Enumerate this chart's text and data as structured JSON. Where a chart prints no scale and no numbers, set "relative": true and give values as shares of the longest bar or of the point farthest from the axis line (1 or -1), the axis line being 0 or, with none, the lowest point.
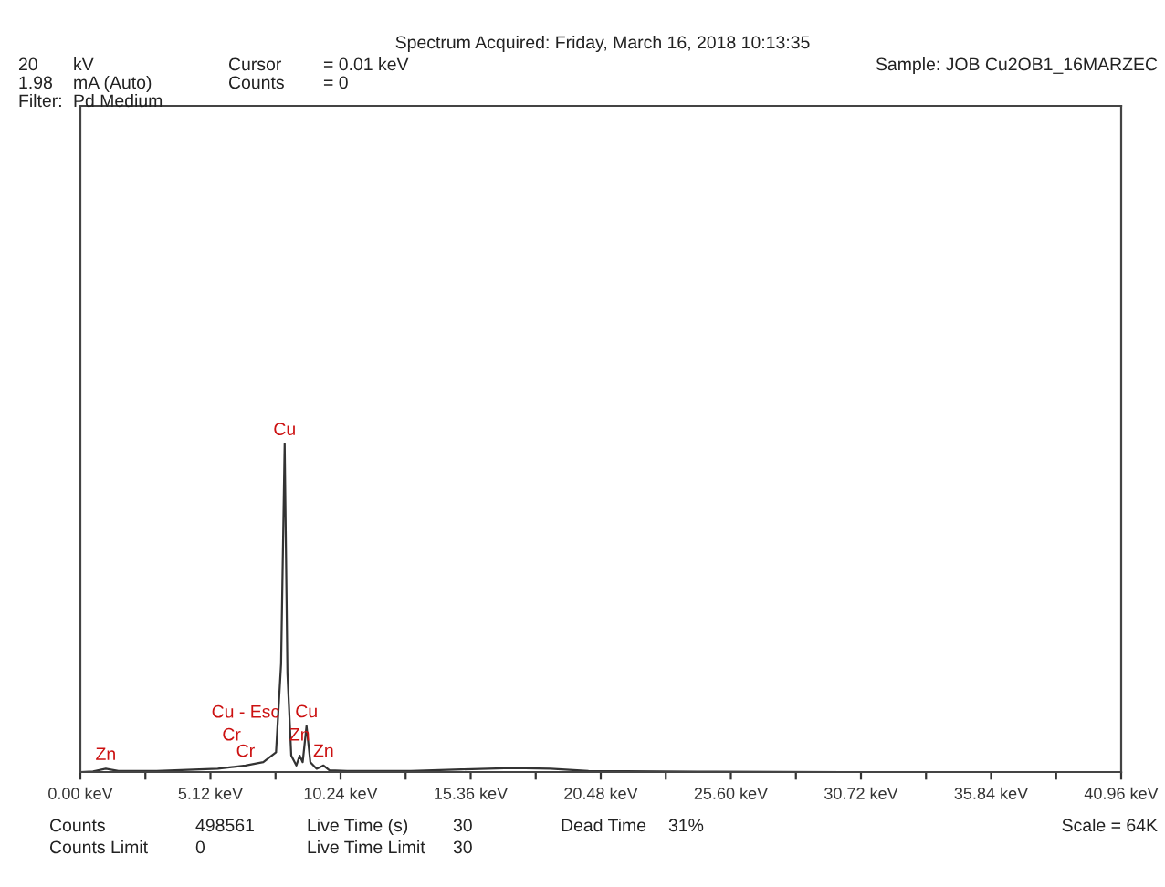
{
  "chart_data": {
    "type": "line",
    "relative": true,
    "title": "Spectrum Acquired: Friday, March 16, 2018 10:13:35",
    "x": [
      0,
      0.5,
      1.0,
      1.5,
      3,
      5.41,
      5.95,
      6.5,
      7.2,
      7.7,
      7.9,
      8.04,
      8.15,
      8.3,
      8.5,
      8.63,
      8.75,
      8.9,
      9.05,
      9.3,
      9.57,
      9.8,
      10.5,
      13,
      15,
      17,
      18.5,
      20,
      25,
      30,
      40.96
    ],
    "series": [
      {
        "color": "#333333",
        "values": [
          0,
          0.002,
          0.01,
          0.003,
          0.003,
          0.01,
          0.015,
          0.02,
          0.03,
          0.06,
          0.33,
          1.0,
          0.3,
          0.05,
          0.02,
          0.05,
          0.03,
          0.14,
          0.03,
          0.01,
          0.02,
          0.005,
          0.003,
          0.003,
          0.008,
          0.012,
          0.01,
          0.003,
          0.001,
          0,
          0
        ]
      }
    ],
    "xlim": [
      0,
      40.96
    ],
    "xticks": [
      {
        "value": 0,
        "label": "0.00 keV"
      },
      {
        "value": 2.56,
        "label": null
      },
      {
        "value": 5.12,
        "label": "5.12 keV"
      },
      {
        "value": 7.68,
        "label": null
      },
      {
        "value": 10.24,
        "label": "10.24 keV"
      },
      {
        "value": 12.8,
        "label": null
      },
      {
        "value": 15.36,
        "label": "15.36 keV"
      },
      {
        "value": 17.92,
        "label": null
      },
      {
        "value": 20.48,
        "label": "20.48 keV"
      },
      {
        "value": 23.04,
        "label": null
      },
      {
        "value": 25.6,
        "label": "25.60 keV"
      },
      {
        "value": 28.16,
        "label": null
      },
      {
        "value": 30.72,
        "label": "30.72 keV"
      },
      {
        "value": 33.28,
        "label": null
      },
      {
        "value": 35.84,
        "label": "35.84 keV"
      },
      {
        "value": 38.4,
        "label": null
      },
      {
        "value": 40.96,
        "label": "40.96 keV"
      }
    ],
    "grid": false,
    "legend": false,
    "marker": "none",
    "line_style": "solid",
    "annotations": [
      {
        "text": "Cu",
        "x": 8.04,
        "y": 1.0
      },
      {
        "text": "Cr",
        "x": 6.5,
        "y": 0.02
      },
      {
        "text": "Cr",
        "x": 5.95,
        "y": 0.015
      },
      {
        "text": "Cu - Esc",
        "x": 6.5,
        "y": 0.02
      },
      {
        "text": "Zn",
        "x": 9.57,
        "y": 0.02
      },
      {
        "text": "Zn",
        "x": 8.63,
        "y": 0.05
      },
      {
        "text": "Cu",
        "x": 8.9,
        "y": 0.14
      },
      {
        "text": "Zn",
        "x": 1.0,
        "y": 0.01
      },
      "20",
      "kV",
      "Cursor",
      "= 0.01 keV",
      "Sample: JOB Cu2OB1_16MARZEC",
      "1.98",
      "mA (Auto)",
      "Counts",
      "= 0",
      "Filter:",
      "Pd Medium",
      "Counts",
      "498561",
      "Live Time (s)",
      "30",
      "Dead Time",
      "31%",
      "Scale = 64K",
      "Counts Limit",
      "0",
      "Live Time Limit",
      "30"
    ]
  }
}
